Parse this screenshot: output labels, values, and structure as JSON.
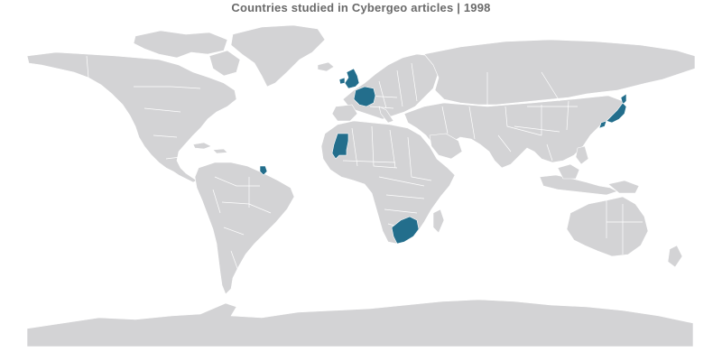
{
  "title": "Countries studied in Cybergeo articles | 1998",
  "colors": {
    "land": "#d3d3d5",
    "highlight": "#236e8c",
    "border": "#ffffff",
    "title": "#6a6a6a"
  },
  "highlighted_countries": [
    "United Kingdom",
    "France",
    "Mauritania",
    "French Guiana",
    "South Africa",
    "Japan"
  ]
}
